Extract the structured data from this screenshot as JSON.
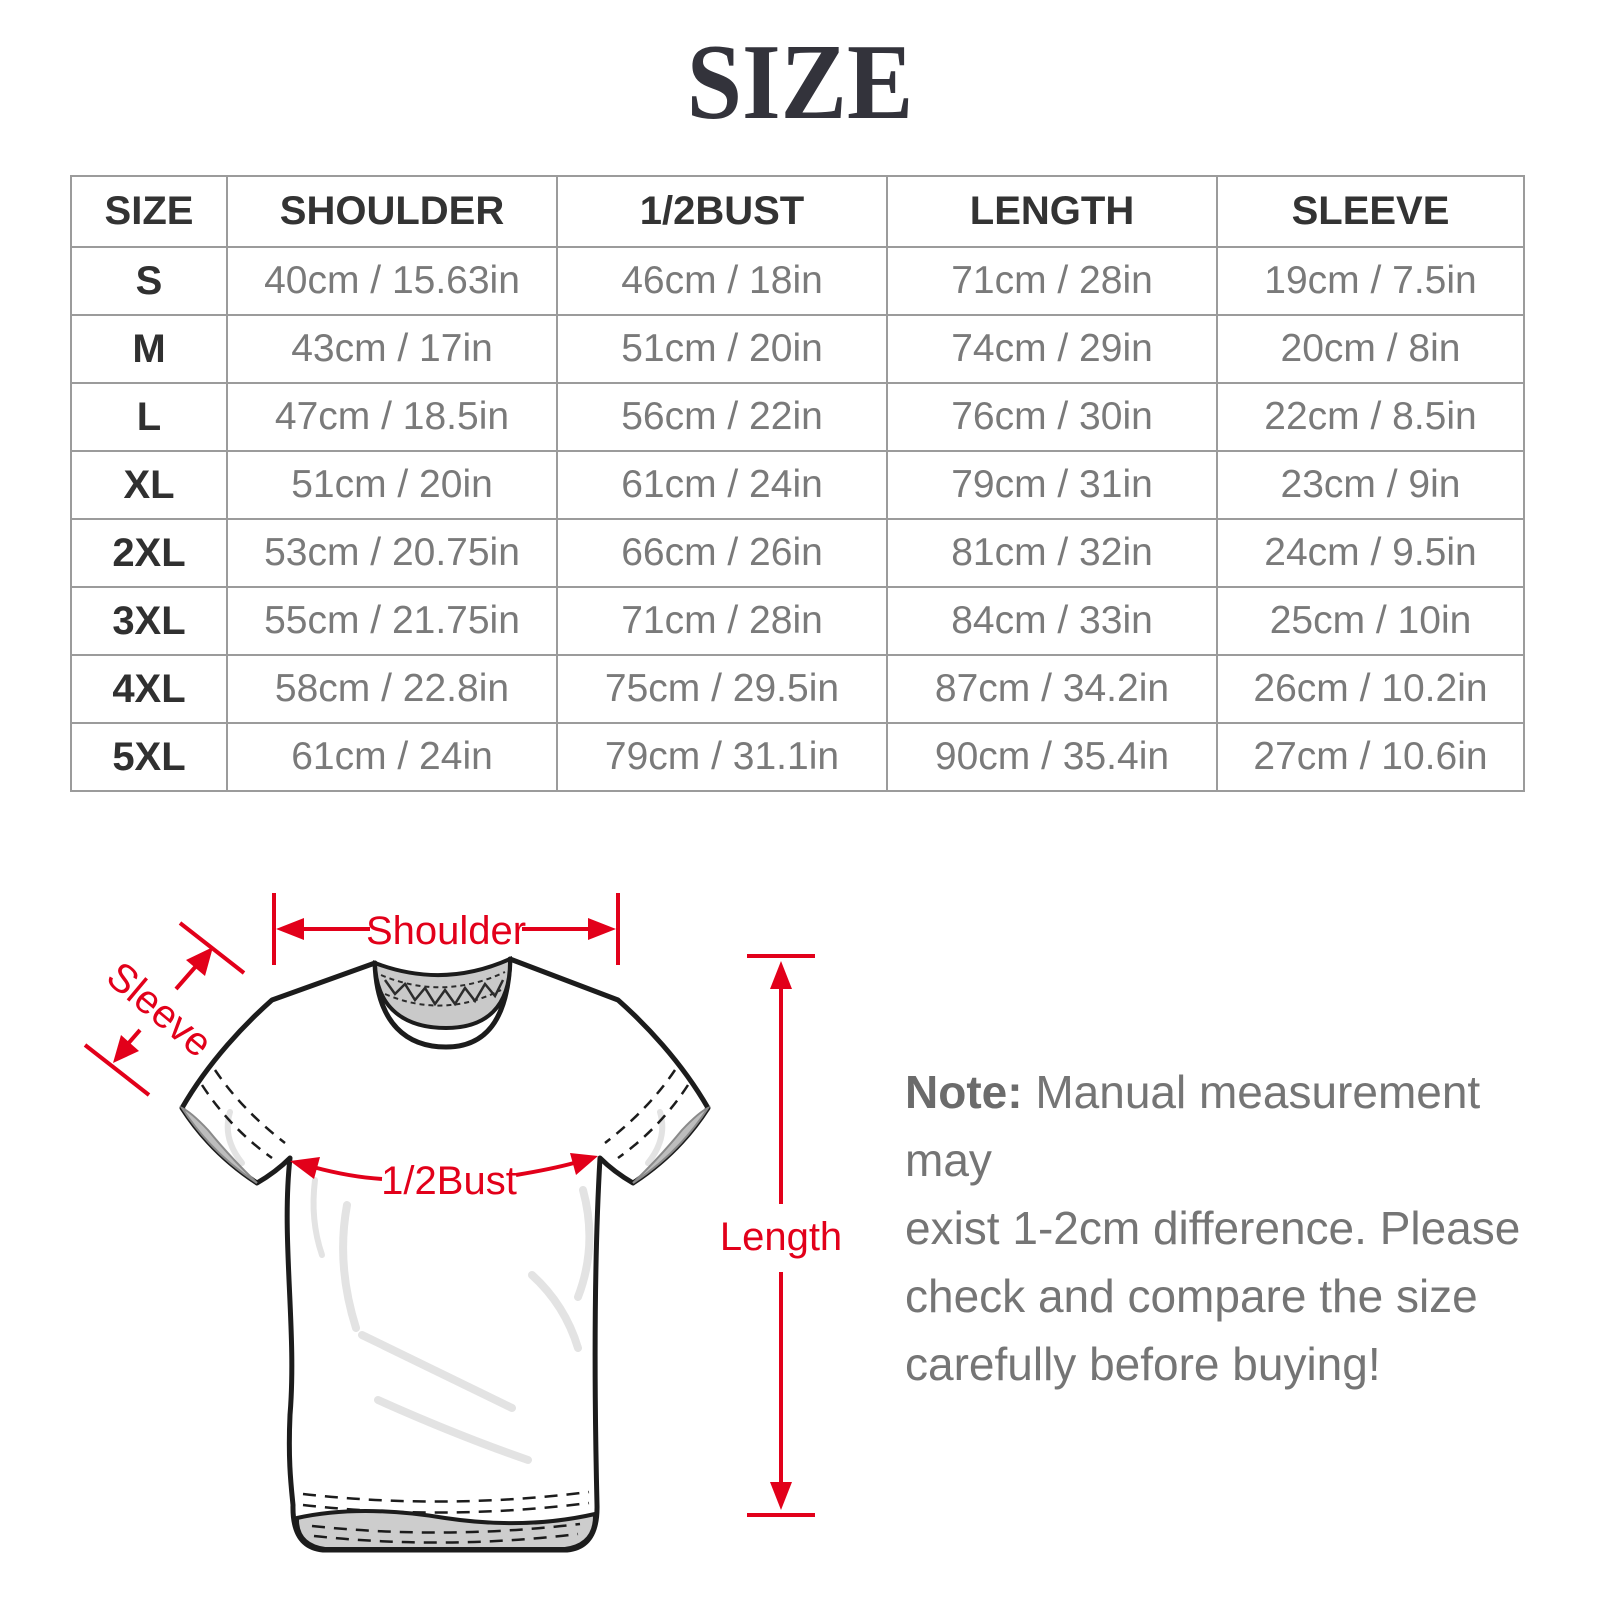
{
  "title": "SIZE",
  "table": {
    "headers": [
      "SIZE",
      "SHOULDER",
      "1/2BUST",
      "LENGTH",
      "SLEEVE"
    ],
    "rows": [
      [
        "S",
        "40cm / 15.63in",
        "46cm / 18in",
        "71cm / 28in",
        "19cm / 7.5in"
      ],
      [
        "M",
        "43cm / 17in",
        "51cm / 20in",
        "74cm / 29in",
        "20cm / 8in"
      ],
      [
        "L",
        "47cm / 18.5in",
        "56cm / 22in",
        "76cm / 30in",
        "22cm / 8.5in"
      ],
      [
        "XL",
        "51cm / 20in",
        "61cm / 24in",
        "79cm / 31in",
        "23cm / 9in"
      ],
      [
        "2XL",
        "53cm / 20.75in",
        "66cm / 26in",
        "81cm / 32in",
        "24cm / 9.5in"
      ],
      [
        "3XL",
        "55cm / 21.75in",
        "71cm / 28in",
        "84cm / 33in",
        "25cm / 10in"
      ],
      [
        "4XL",
        "58cm / 22.8in",
        "75cm / 29.5in",
        "87cm / 34.2in",
        "26cm / 10.2in"
      ],
      [
        "5XL",
        "61cm / 24in",
        "79cm / 31.1in",
        "90cm / 35.4in",
        "27cm / 10.6in"
      ]
    ]
  },
  "diagram": {
    "labels": {
      "shoulder": "Shoulder",
      "sleeve": "Sleeve",
      "bust": "1/2Bust",
      "length": "Length"
    },
    "accent_color": "#e2001a"
  },
  "note": {
    "prefix": "Note:",
    "lines": [
      "Manual measurement may",
      "exist 1-2cm difference. Please",
      "check and compare the size",
      "carefully before buying!"
    ]
  }
}
